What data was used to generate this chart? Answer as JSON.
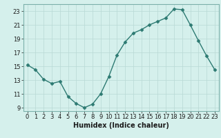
{
  "x": [
    0,
    1,
    2,
    3,
    4,
    5,
    6,
    7,
    8,
    9,
    10,
    11,
    12,
    13,
    14,
    15,
    16,
    17,
    18,
    19,
    20,
    21,
    22,
    23
  ],
  "y": [
    15.2,
    14.5,
    13.1,
    12.5,
    12.8,
    10.6,
    9.6,
    9.0,
    9.5,
    11.0,
    13.5,
    16.6,
    18.5,
    19.8,
    20.3,
    21.0,
    21.5,
    22.0,
    23.3,
    23.2,
    21.0,
    18.7,
    16.5,
    14.5
  ],
  "xlabel": "Humidex (Indice chaleur)",
  "xlim": [
    -0.5,
    23.5
  ],
  "ylim": [
    8.5,
    24.0
  ],
  "yticks": [
    9,
    11,
    13,
    15,
    17,
    19,
    21,
    23
  ],
  "xtick_labels": [
    "0",
    "1",
    "2",
    "3",
    "4",
    "5",
    "6",
    "7",
    "8",
    "9",
    "10",
    "11",
    "12",
    "13",
    "14",
    "15",
    "16",
    "17",
    "18",
    "19",
    "20",
    "21",
    "22",
    "23"
  ],
  "line_color": "#2d7a72",
  "marker_color": "#2d7a72",
  "bg_color": "#d5f0ec",
  "grid_color": "#b8d8d4",
  "fig_bg": "#d5f0ec",
  "spine_color": "#7ab0aa",
  "tick_label_fontsize": 6.0,
  "xlabel_fontsize": 7.0
}
